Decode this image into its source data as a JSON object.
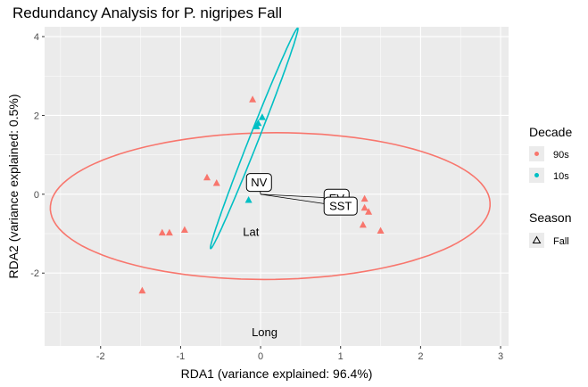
{
  "chart_data": {
    "type": "scatter",
    "title": "Redundancy Analysis for P. nigripes Fall",
    "xlabel": "RDA1 (variance explained: 96.4%)",
    "ylabel": "RDA2 (variance explained: 0.5%)",
    "xlim": [
      -2.7,
      3.1
    ],
    "ylim": [
      -3.85,
      4.25
    ],
    "xticks": [
      -2,
      -1,
      0,
      1,
      2,
      3
    ],
    "yticks": [
      -2,
      0,
      2,
      4
    ],
    "grid": true,
    "legend_position": "right",
    "colors": {
      "90s": "#F8766D",
      "10s": "#00BFC4"
    },
    "series": [
      {
        "name": "90s",
        "points": [
          {
            "x": -0.1,
            "y": 2.4
          },
          {
            "x": -0.67,
            "y": 0.42
          },
          {
            "x": -0.55,
            "y": 0.28
          },
          {
            "x": -1.23,
            "y": -0.98
          },
          {
            "x": -1.14,
            "y": -0.98
          },
          {
            "x": -0.95,
            "y": -0.91
          },
          {
            "x": -1.48,
            "y": -2.45
          },
          {
            "x": 1.3,
            "y": -0.12
          },
          {
            "x": 1.3,
            "y": -0.35
          },
          {
            "x": 1.35,
            "y": -0.45
          },
          {
            "x": 1.28,
            "y": -0.78
          },
          {
            "x": 1.5,
            "y": -0.93
          }
        ]
      },
      {
        "name": "10s",
        "points": [
          {
            "x": 0.02,
            "y": 1.95
          },
          {
            "x": -0.05,
            "y": 1.72
          },
          {
            "x": -0.03,
            "y": 1.8
          },
          {
            "x": -0.15,
            "y": -0.15
          }
        ]
      }
    ],
    "ellipses": [
      {
        "group": "90s",
        "cx": 0.12,
        "cy": -0.3,
        "rx": 2.75,
        "ry": 1.86,
        "angle_deg": 2
      },
      {
        "group": "10s",
        "cx": -0.08,
        "cy": 1.42,
        "rx": 2.85,
        "ry": 0.06,
        "angle_deg": 79
      }
    ],
    "biplot_arrows": [
      {
        "label": "NV",
        "x": -0.02,
        "y": 0.3
      },
      {
        "label": "EV",
        "x": 0.95,
        "y": -0.1
      },
      {
        "label": "SST",
        "x": 1.0,
        "y": -0.3
      }
    ],
    "text_labels": [
      {
        "label": "Lat",
        "x": -0.12,
        "y": -0.95
      },
      {
        "label": "Long",
        "x": 0.05,
        "y": -3.5
      }
    ],
    "legend": {
      "decade_title": "Decade",
      "decade_items": [
        "90s",
        "10s"
      ],
      "season_title": "Season",
      "season_items": [
        "Fall"
      ]
    }
  }
}
